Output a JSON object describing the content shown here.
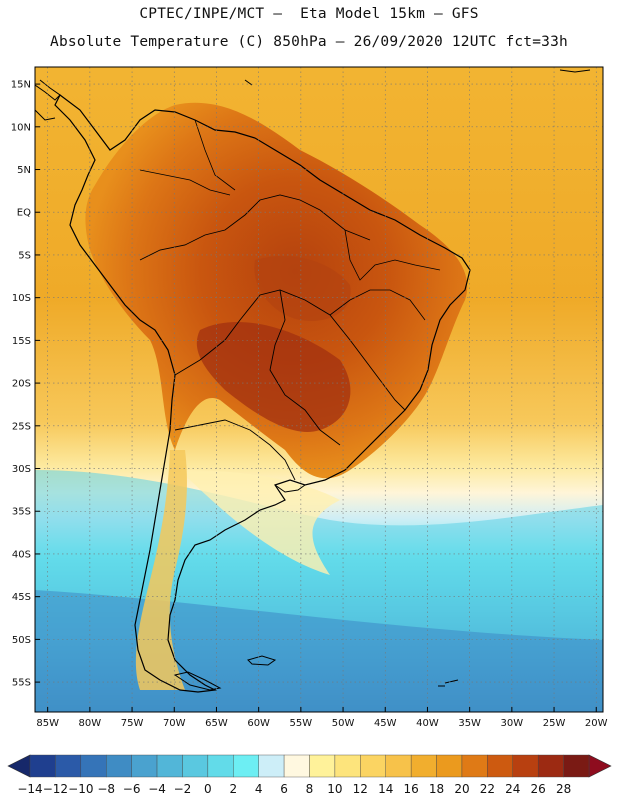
{
  "header": {
    "line1": "CPTEC/INPE/MCT –  Eta Model 15km – GFS",
    "line2": "Absolute Temperature (C) 850hPa – 26/09/2020 12UTC fct=33h"
  },
  "axes": {
    "lat_labels": [
      "15N",
      "10N",
      "5N",
      "EQ",
      "5S",
      "10S",
      "15S",
      "20S",
      "25S",
      "30S",
      "35S",
      "40S",
      "45S",
      "50S",
      "55S"
    ],
    "lon_labels": [
      "85W",
      "80W",
      "75W",
      "70W",
      "65W",
      "60W",
      "55W",
      "50W",
      "45W",
      "40W",
      "35W",
      "30W",
      "25W",
      "20W"
    ],
    "lat_range": [
      15,
      -55
    ],
    "lon_range": [
      -85,
      -20
    ],
    "grid": "dotted"
  },
  "colorbar": {
    "ticks": [
      "-14",
      "-12",
      "-10",
      "-8",
      "-6",
      "-4",
      "-2",
      "0",
      "2",
      "4",
      "6",
      "8",
      "10",
      "12",
      "14",
      "16",
      "18",
      "20",
      "22",
      "24",
      "26",
      "28"
    ],
    "colors": [
      "#1f3f8f",
      "#2b5aa8",
      "#3574b8",
      "#3f8cc4",
      "#4aa2cf",
      "#52b6d8",
      "#5ac8e0",
      "#62dbe9",
      "#6deef3",
      "#cdeef8",
      "#fff8e0",
      "#fff29a",
      "#fde47c",
      "#fbd462",
      "#f7c24a",
      "#f1ae2e",
      "#eb9a1e",
      "#df7a16",
      "#cd5a10",
      "#b84010",
      "#9c2a12",
      "#7a1a14"
    ],
    "below_color": "#16286a",
    "above_color": "#8e0c1e"
  },
  "map": {
    "ocean_band_colors": [
      "#2f5ea8",
      "#3a7bc0",
      "#46a3d0",
      "#57c3dd",
      "#62d8ea",
      "#70eef4",
      "#cfeef5",
      "#fff2cc",
      "#fdde80",
      "#f5c04a",
      "#eeaa28"
    ],
    "land_colors": [
      "#e8901c",
      "#da7414",
      "#c95a10",
      "#b7460f"
    ]
  }
}
